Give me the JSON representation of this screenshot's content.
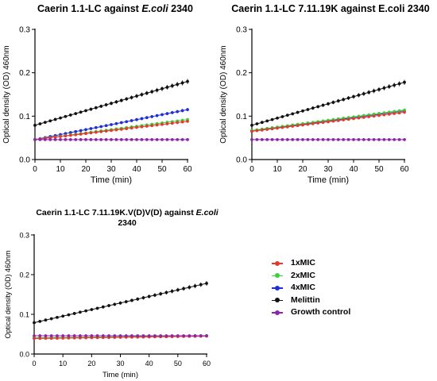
{
  "chart_data": [
    {
      "type": "line",
      "title": "Caerin 1.1-LC against",
      "title_italic": "E.coli",
      "title_suffix": "2340",
      "xlabel": "Time (min)",
      "ylabel": "Optical density (OD) 460nm",
      "xlim": [
        0,
        60
      ],
      "ylim": [
        0,
        0.3
      ],
      "xticks": [
        0,
        10,
        20,
        30,
        40,
        50,
        60
      ],
      "yticks": [
        0.0,
        0.1,
        0.2,
        0.3
      ],
      "ytick_labels": [
        "0.0",
        "0.1",
        "0.2",
        "0.3"
      ],
      "grid": false,
      "series": [
        {
          "name": "Melittin",
          "x": [
            0,
            60
          ],
          "values": [
            0.079,
            0.18
          ],
          "color": "#111111"
        },
        {
          "name": "4xMIC",
          "x": [
            0,
            60
          ],
          "values": [
            0.046,
            0.115
          ],
          "color": "#1f2fd6"
        },
        {
          "name": "2xMIC",
          "x": [
            0,
            60
          ],
          "values": [
            0.046,
            0.092
          ],
          "color": "#3ccf3c"
        },
        {
          "name": "1xMIC",
          "x": [
            0,
            60
          ],
          "values": [
            0.046,
            0.088
          ],
          "color": "#e23b2e"
        },
        {
          "name": "Growth control",
          "x": [
            0,
            60
          ],
          "values": [
            0.046,
            0.046
          ],
          "color": "#8e24aa"
        }
      ]
    },
    {
      "type": "line",
      "title": "Caerin 1.1-LC 7.11.19K against E.coli 2340",
      "title_italic": "",
      "title_suffix": "",
      "xlabel": "Time (min)",
      "ylabel": "Optical density (OD) 460nm",
      "xlim": [
        0,
        60
      ],
      "ylim": [
        0,
        0.3
      ],
      "xticks": [
        0,
        10,
        20,
        30,
        40,
        50,
        60
      ],
      "yticks": [
        0.0,
        0.1,
        0.2,
        0.3
      ],
      "ytick_labels": [
        "0.0",
        "0.1",
        "0.2",
        "0.3"
      ],
      "grid": false,
      "series": [
        {
          "name": "Melittin",
          "x": [
            0,
            60
          ],
          "values": [
            0.079,
            0.178
          ],
          "color": "#111111"
        },
        {
          "name": "4xMIC",
          "x": [
            0,
            60
          ],
          "values": [
            0.066,
            0.112
          ],
          "color": "#1f2fd6"
        },
        {
          "name": "2xMIC",
          "x": [
            0,
            60
          ],
          "values": [
            0.067,
            0.114
          ],
          "color": "#3ccf3c"
        },
        {
          "name": "1xMIC",
          "x": [
            0,
            60
          ],
          "values": [
            0.065,
            0.109
          ],
          "color": "#e23b2e"
        },
        {
          "name": "Growth control",
          "x": [
            0,
            60
          ],
          "values": [
            0.046,
            0.046
          ],
          "color": "#8e24aa"
        }
      ]
    },
    {
      "type": "line",
      "title": "Caerin 1.1-LC 7.11.19K.V(D)V(D) against",
      "title_italic": "E.coli",
      "title_suffix": "2340",
      "xlabel": "Time (min)",
      "ylabel": "Optical density (OD) 460nm",
      "xlim": [
        0,
        60
      ],
      "ylim": [
        0,
        0.3
      ],
      "xticks": [
        0,
        10,
        20,
        30,
        40,
        50,
        60
      ],
      "yticks": [
        0.0,
        0.1,
        0.2,
        0.3
      ],
      "ytick_labels": [
        "0.0",
        "0.1",
        "0.2",
        "0.3"
      ],
      "grid": false,
      "series": [
        {
          "name": "Melittin",
          "x": [
            0,
            60
          ],
          "values": [
            0.079,
            0.178
          ],
          "color": "#111111"
        },
        {
          "name": "4xMIC",
          "x": [
            0,
            60
          ],
          "values": [
            0.04,
            0.046
          ],
          "color": "#1f2fd6"
        },
        {
          "name": "2xMIC",
          "x": [
            0,
            60
          ],
          "values": [
            0.041,
            0.046
          ],
          "color": "#3ccf3c"
        },
        {
          "name": "1xMIC",
          "x": [
            0,
            60
          ],
          "values": [
            0.039,
            0.045
          ],
          "color": "#e23b2e"
        },
        {
          "name": "Growth control",
          "x": [
            0,
            60
          ],
          "values": [
            0.046,
            0.046
          ],
          "color": "#8e24aa"
        }
      ]
    }
  ],
  "legend": {
    "items": [
      {
        "label": "1xMIC",
        "color": "#e23b2e"
      },
      {
        "label": "2xMIC",
        "color": "#3ccf3c"
      },
      {
        "label": "4xMIC",
        "color": "#1f2fd6"
      },
      {
        "label": "Melittin",
        "color": "#111111"
      },
      {
        "label": "Growth control",
        "color": "#8e24aa"
      }
    ]
  }
}
